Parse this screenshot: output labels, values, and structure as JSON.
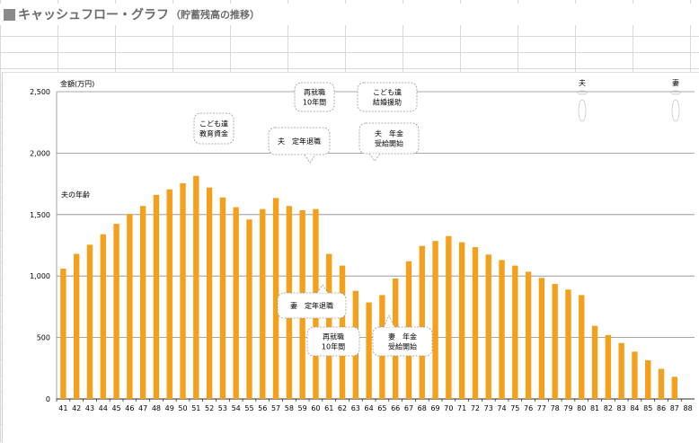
{
  "title": {
    "main": "キャッシュフロー・グラフ",
    "sub": "（貯蓄残高の推移）"
  },
  "chart_data": {
    "type": "bar",
    "ylabel": "金額(万円)",
    "xlabel": "夫の年齢",
    "ylim": [
      0,
      2500
    ],
    "yticks": [
      0,
      500,
      1000,
      1500,
      2000,
      2500
    ],
    "ytick_labels": [
      "0",
      "500",
      "1,000",
      "1,500",
      "2,000",
      "2,500"
    ],
    "grid": true,
    "bar_color": "#f5a01a",
    "categories": [
      "41",
      "42",
      "43",
      "44",
      "45",
      "46",
      "47",
      "48",
      "49",
      "50",
      "51",
      "52",
      "53",
      "54",
      "55",
      "56",
      "57",
      "58",
      "59",
      "60",
      "61",
      "62",
      "63",
      "64",
      "65",
      "66",
      "67",
      "68",
      "69",
      "70",
      "71",
      "72",
      "73",
      "74",
      "75",
      "76",
      "77",
      "78",
      "79",
      "80",
      "81",
      "82",
      "83",
      "84",
      "85",
      "86",
      "87",
      "88"
    ],
    "values": [
      1060,
      1180,
      1255,
      1340,
      1425,
      1505,
      1570,
      1660,
      1705,
      1755,
      1815,
      1720,
      1640,
      1560,
      1460,
      1545,
      1635,
      1570,
      1535,
      1545,
      1180,
      1085,
      880,
      785,
      845,
      980,
      1120,
      1245,
      1285,
      1325,
      1275,
      1235,
      1175,
      1130,
      1085,
      1035,
      985,
      935,
      890,
      845,
      595,
      520,
      455,
      385,
      315,
      245,
      180,
      0
    ],
    "annotations": [
      {
        "id": "kids-education",
        "lines": [
          "こども達",
          "教育資金"
        ]
      },
      {
        "id": "husband-retire",
        "lines": [
          "夫　定年退職"
        ]
      },
      {
        "id": "husband-reemploy",
        "lines": [
          "再就職",
          "10年間"
        ]
      },
      {
        "id": "kids-wedding",
        "lines": [
          "こども達",
          "結婚援助"
        ]
      },
      {
        "id": "husband-pension",
        "lines": [
          "夫　年金",
          "受給開始"
        ]
      },
      {
        "id": "wife-retire",
        "lines": [
          "妻　定年退職"
        ]
      },
      {
        "id": "wife-reemploy",
        "lines": [
          "再就職",
          "10年間"
        ]
      },
      {
        "id": "wife-pension",
        "lines": [
          "妻　年金",
          "受給開始"
        ]
      }
    ],
    "lifespan_labels": [
      "夫",
      "妻"
    ]
  }
}
